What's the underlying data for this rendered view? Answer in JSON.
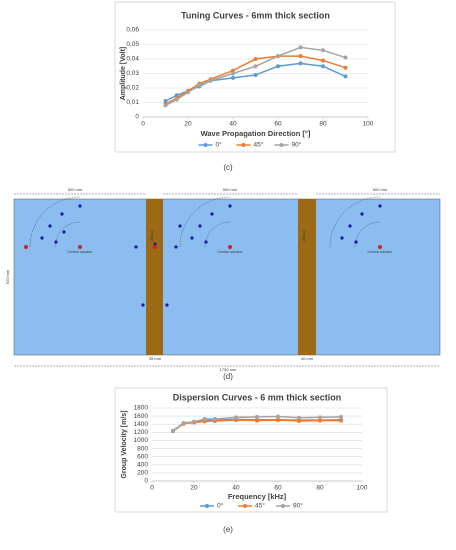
{
  "chart_data": [
    {
      "type": "line",
      "title": "Tuning Curves - 6mm thick section",
      "x_label": "Wave Propagation Direction [°]",
      "y_label": "Amplitude [Volt]",
      "x": [
        10,
        15,
        20,
        25,
        30,
        40,
        50,
        60,
        70,
        80,
        90
      ],
      "series": [
        {
          "name": "0°",
          "color": "#5b9bd5",
          "values": [
            0.011,
            0.015,
            0.018,
            0.021,
            0.025,
            0.027,
            0.029,
            0.035,
            0.037,
            0.035,
            0.028
          ]
        },
        {
          "name": "45°",
          "color": "#ed7d31",
          "values": [
            0.009,
            0.013,
            0.018,
            0.023,
            0.026,
            0.032,
            0.04,
            0.042,
            0.042,
            0.039,
            0.034
          ]
        },
        {
          "name": "90°",
          "color": "#a5a5a5",
          "values": [
            0.008,
            0.012,
            0.017,
            0.022,
            0.025,
            0.03,
            0.035,
            0.042,
            0.048,
            0.046,
            0.041
          ]
        }
      ],
      "xlim": [
        0,
        100
      ],
      "xticks": [
        0,
        20,
        40,
        60,
        80,
        100
      ],
      "ylim": [
        0,
        0.06
      ],
      "yticks": [
        0,
        {
          "value": 0.01,
          "label": "0,01"
        },
        {
          "value": 0.02,
          "label": "0,02"
        },
        {
          "value": 0.03,
          "label": "0,03"
        },
        {
          "value": 0.04,
          "label": "0,04"
        },
        {
          "value": 0.05,
          "label": "0,05"
        },
        {
          "value": 0.06,
          "label": "0,06"
        }
      ],
      "grid": true,
      "legend": "bottom"
    },
    {
      "type": "line",
      "title": "Dispersion Curves - 6 mm thick section",
      "x_label": "Frequency [kHz]",
      "y_label": "Group Velocity [m/s]",
      "x": [
        10,
        15,
        20,
        25,
        30,
        40,
        50,
        60,
        70,
        80,
        90
      ],
      "series": [
        {
          "name": "0°",
          "color": "#5b9bd5",
          "values": [
            1230,
            1420,
            1450,
            1500,
            1500,
            1520,
            1510,
            1510,
            1500,
            1500,
            1510
          ]
        },
        {
          "name": "45°",
          "color": "#ed7d31",
          "values": [
            1230,
            1410,
            1440,
            1470,
            1480,
            1500,
            1490,
            1500,
            1480,
            1490,
            1490
          ]
        },
        {
          "name": "90°",
          "color": "#a5a5a5",
          "values": [
            1240,
            1430,
            1460,
            1530,
            1530,
            1570,
            1580,
            1590,
            1560,
            1570,
            1580
          ]
        }
      ],
      "xlim": [
        0,
        100
      ],
      "xticks": [
        0,
        20,
        40,
        60,
        80,
        100
      ],
      "ylim": [
        0,
        1800
      ],
      "yticks": [
        0,
        200,
        400,
        600,
        800,
        1000,
        1200,
        1400,
        1600,
        1800
      ],
      "grid": true,
      "legend": "bottom"
    }
  ],
  "diagram": {
    "top_dims": [
      "500 mm",
      "500 mm",
      "500 mm"
    ],
    "height_dim": "620 mm",
    "total_dim": "1750 mm",
    "strip_dims": [
      "35 mm",
      "40 mm"
    ],
    "actuator_label": "Central actuator",
    "strip_label": "Stringer"
  },
  "captions": [
    "(c)",
    "(d)",
    "(e)"
  ]
}
